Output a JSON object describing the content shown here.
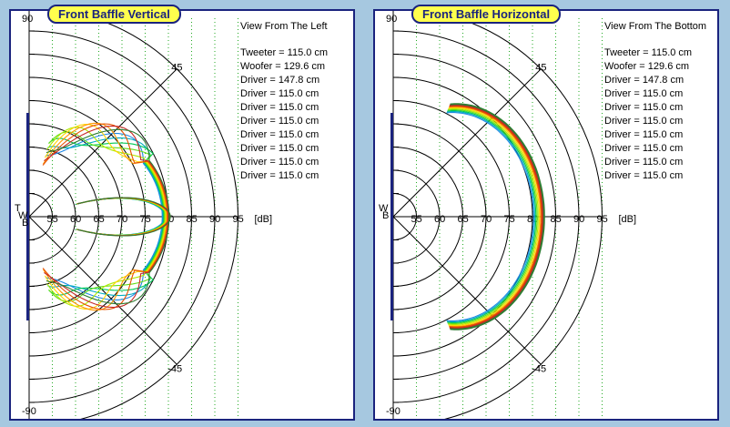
{
  "panels": [
    {
      "title": "Front Baffle Vertical",
      "view": "View From The Left",
      "marker": "T W B",
      "drivers": [
        "Tweeter = 115.0 cm",
        "Woofer = 129.6 cm",
        "Driver = 147.8 cm",
        "Driver = 115.0 cm",
        "Driver = 115.0 cm",
        "Driver = 115.0 cm",
        "Driver = 115.0 cm",
        "Driver = 115.0 cm",
        "Driver = 115.0 cm",
        "Driver = 115.0 cm"
      ]
    },
    {
      "title": "Front Baffle Horizontal",
      "view": "View From The Bottom",
      "marker": "W B",
      "drivers": [
        "Tweeter = 115.0 cm",
        "Woofer = 129.6 cm",
        "Driver = 147.8 cm",
        "Driver = 115.0 cm",
        "Driver = 115.0 cm",
        "Driver = 115.0 cm",
        "Driver = 115.0 cm",
        "Driver = 115.0 cm",
        "Driver = 115.0 cm",
        "Driver = 115.0 cm"
      ]
    }
  ],
  "axis": {
    "angle_labels": [
      "90",
      "45",
      "-45",
      "-90"
    ],
    "ticks": [
      "55",
      "60",
      "65",
      "70",
      "75",
      "80",
      "85",
      "90",
      "95"
    ],
    "unit": "[dB]"
  },
  "colors": {
    "background": "#a6c8e0",
    "frame": "#1a237e",
    "badge": "#ffff4d",
    "grid": "#000000",
    "dotted": "#22aa22",
    "curves": [
      "#1e88e5",
      "#00acc1",
      "#00c853",
      "#64dd17",
      "#aeea00",
      "#ffd600",
      "#ff9800",
      "#e65100",
      "#c62828",
      "#2e7d32"
    ]
  }
}
